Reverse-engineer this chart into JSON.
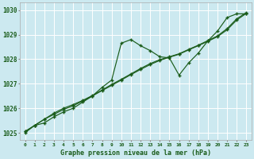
{
  "title": "Graphe pression niveau de la mer (hPa)",
  "background_color": "#cce9f0",
  "grid_color": "#b8d8e0",
  "line_color": "#1a5c1a",
  "text_color": "#1a5c1a",
  "ylim": [
    1024.7,
    1030.3
  ],
  "yticks": [
    1025,
    1026,
    1027,
    1028,
    1029,
    1030
  ],
  "xticks": [
    0,
    1,
    2,
    3,
    4,
    5,
    6,
    7,
    8,
    9,
    10,
    11,
    12,
    13,
    14,
    15,
    16,
    17,
    18,
    19,
    20,
    21,
    22,
    23
  ],
  "s1": [
    1025.0,
    1025.3,
    1025.4,
    1025.65,
    1025.85,
    1026.0,
    1026.25,
    1026.5,
    1026.85,
    1027.15,
    1028.65,
    1028.8,
    1028.55,
    1028.35,
    1028.1,
    1028.05,
    1027.35,
    1027.85,
    1028.25,
    1028.75,
    1029.15,
    1029.7,
    1029.85,
    1029.85
  ],
  "s2": [
    1025.05,
    1025.3,
    1025.55,
    1025.75,
    1025.95,
    1026.1,
    1026.3,
    1026.5,
    1026.72,
    1026.93,
    1027.15,
    1027.37,
    1027.58,
    1027.78,
    1027.95,
    1028.08,
    1028.2,
    1028.38,
    1028.55,
    1028.73,
    1028.92,
    1029.2,
    1029.6,
    1029.87
  ],
  "s3": [
    1025.05,
    1025.3,
    1025.55,
    1025.8,
    1026.0,
    1026.15,
    1026.32,
    1026.52,
    1026.74,
    1026.97,
    1027.18,
    1027.4,
    1027.62,
    1027.82,
    1027.98,
    1028.1,
    1028.22,
    1028.4,
    1028.57,
    1028.76,
    1028.95,
    1029.25,
    1029.65,
    1029.9
  ]
}
